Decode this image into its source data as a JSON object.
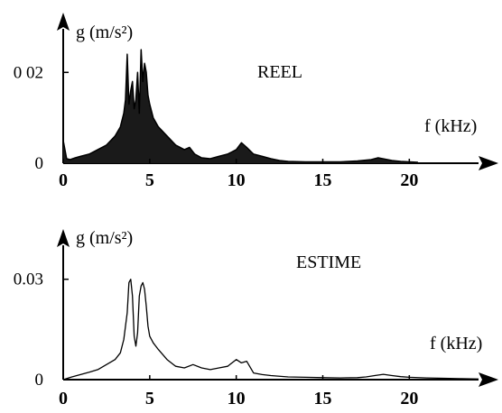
{
  "chart_data": [
    {
      "type": "line",
      "title": "REEL",
      "ylabel": "g (m/s²)",
      "xlabel": "f (kHz)",
      "xlim": [
        0,
        24
      ],
      "ylim": [
        0,
        0.028
      ],
      "x_ticks": [
        {
          "value": 0,
          "label": "0"
        },
        {
          "value": 5,
          "label": "5"
        },
        {
          "value": 10,
          "label": "10"
        },
        {
          "value": 15,
          "label": "15"
        },
        {
          "value": 20,
          "label": "20"
        }
      ],
      "y_ticks": [
        {
          "value": 0,
          "label": "0"
        },
        {
          "value": 0.02,
          "label": "0 02"
        }
      ],
      "fill_under": true,
      "series": [
        {
          "x": [
            0,
            0.1,
            0.2,
            0.4,
            0.7,
            1.0,
            1.5,
            2.0,
            2.5,
            3.0,
            3.3,
            3.5,
            3.6,
            3.7,
            3.8,
            3.9,
            4.0,
            4.1,
            4.2,
            4.3,
            4.4,
            4.5,
            4.6,
            4.7,
            4.8,
            4.9,
            5.0,
            5.2,
            5.5,
            6.0,
            6.5,
            7.0,
            7.3,
            7.6,
            8.0,
            8.5,
            9.0,
            9.5,
            10.0,
            10.3,
            10.6,
            11.0,
            11.5,
            12.0,
            12.5,
            13.0,
            14.0,
            15.0,
            16.0,
            17.0,
            17.8,
            18.2,
            18.6,
            19.0,
            19.5,
            20.0,
            20.5
          ],
          "values": [
            0.005,
            0.003,
            0.001,
            0.0008,
            0.0012,
            0.0015,
            0.002,
            0.003,
            0.004,
            0.006,
            0.008,
            0.011,
            0.014,
            0.024,
            0.013,
            0.016,
            0.018,
            0.012,
            0.014,
            0.02,
            0.011,
            0.025,
            0.018,
            0.022,
            0.02,
            0.015,
            0.013,
            0.01,
            0.008,
            0.006,
            0.004,
            0.003,
            0.0035,
            0.002,
            0.0012,
            0.001,
            0.0015,
            0.002,
            0.003,
            0.0045,
            0.0035,
            0.002,
            0.0015,
            0.001,
            0.0006,
            0.0004,
            0.0003,
            0.0003,
            0.0003,
            0.0005,
            0.0008,
            0.0012,
            0.0009,
            0.0006,
            0.0004,
            0.0003,
            0.0002
          ]
        }
      ]
    },
    {
      "type": "line",
      "title": "ESTIME",
      "ylabel": "g (m/s²)",
      "xlabel": "f (kHz)",
      "xlim": [
        0,
        24
      ],
      "ylim": [
        0,
        0.038
      ],
      "x_ticks": [
        {
          "value": 0,
          "label": "0"
        },
        {
          "value": 5,
          "label": "5"
        },
        {
          "value": 10,
          "label": "10"
        },
        {
          "value": 15,
          "label": "15"
        },
        {
          "value": 20,
          "label": "20"
        }
      ],
      "y_ticks": [
        {
          "value": 0,
          "label": "0"
        },
        {
          "value": 0.03,
          "label": "0.03"
        }
      ],
      "fill_under": false,
      "series": [
        {
          "x": [
            0,
            0.5,
            1.0,
            1.5,
            2.0,
            2.5,
            3.0,
            3.3,
            3.5,
            3.7,
            3.8,
            3.9,
            4.0,
            4.1,
            4.2,
            4.3,
            4.4,
            4.5,
            4.6,
            4.7,
            4.8,
            4.9,
            5.0,
            5.2,
            5.5,
            6.0,
            6.5,
            7.0,
            7.5,
            8.0,
            8.5,
            9.0,
            9.5,
            10.0,
            10.3,
            10.6,
            11.0,
            11.5,
            12.0,
            13.0,
            14.0,
            15.0,
            16.0,
            17.0,
            17.5,
            18.0,
            18.5,
            19.0,
            19.5,
            20.0,
            21.0,
            22.0,
            23.0,
            24.0
          ],
          "values": [
            0.0,
            0.0008,
            0.0015,
            0.0022,
            0.003,
            0.0045,
            0.006,
            0.008,
            0.012,
            0.02,
            0.029,
            0.03,
            0.025,
            0.013,
            0.01,
            0.014,
            0.025,
            0.028,
            0.029,
            0.027,
            0.022,
            0.016,
            0.013,
            0.011,
            0.009,
            0.006,
            0.004,
            0.0035,
            0.0045,
            0.0035,
            0.003,
            0.0035,
            0.004,
            0.006,
            0.005,
            0.0055,
            0.002,
            0.0015,
            0.0012,
            0.0008,
            0.0007,
            0.0006,
            0.0005,
            0.0006,
            0.0008,
            0.0012,
            0.0016,
            0.0012,
            0.0009,
            0.0007,
            0.0005,
            0.0004,
            0.0003,
            0.0002
          ]
        }
      ]
    }
  ]
}
